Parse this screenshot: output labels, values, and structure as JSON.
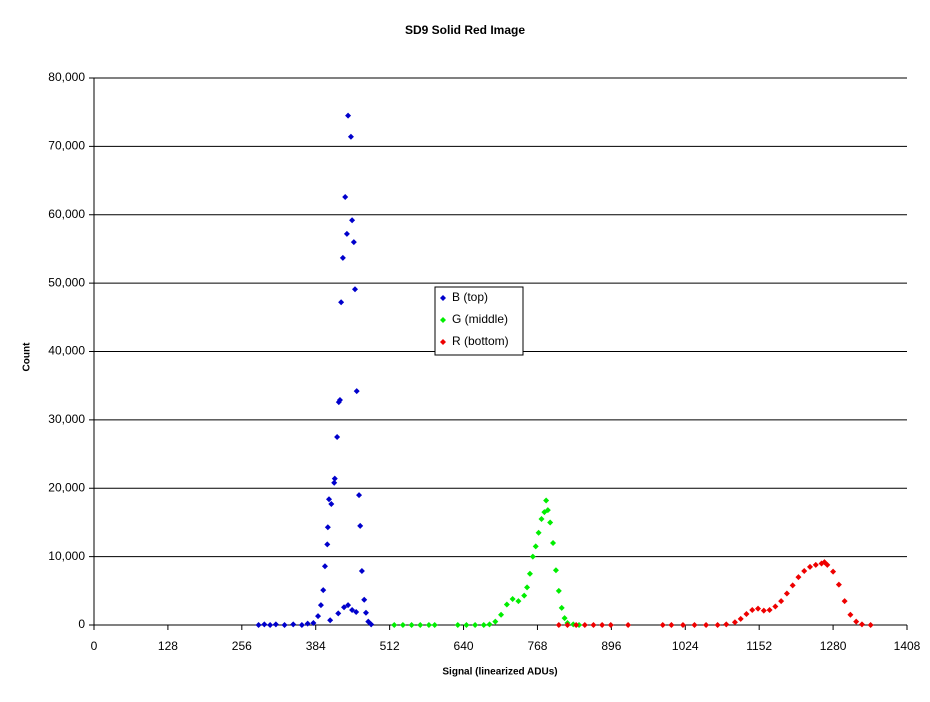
{
  "chart_data": {
    "type": "scatter",
    "title": "SD9 Solid Red Image",
    "x_label": "Signal (linearized ADUs)",
    "y_label": "Count",
    "xlim": [
      0,
      1408
    ],
    "xticks": [
      0,
      128,
      256,
      384,
      512,
      640,
      768,
      896,
      1024,
      1152,
      1280,
      1408
    ],
    "ylim": [
      0,
      80000
    ],
    "yticks": [
      0,
      {
        "value": 10000,
        "label": "10,000"
      },
      {
        "value": 20000,
        "label": "20,000"
      },
      {
        "value": 30000,
        "label": "30,000"
      },
      {
        "value": 40000,
        "label": "40,000"
      },
      {
        "value": 50000,
        "label": "50,000"
      },
      {
        "value": 60000,
        "label": "60,000"
      },
      {
        "value": 70000,
        "label": "70,000"
      },
      {
        "value": 80000,
        "label": "80,000"
      }
    ],
    "grid": true,
    "legend": "center",
    "series": [
      {
        "name": "B (top)",
        "color": "#0000cc",
        "x": [
          285,
          295,
          305,
          315,
          330,
          345,
          360,
          370,
          380,
          388,
          393,
          397,
          400,
          404,
          405,
          407,
          409,
          411,
          416,
          417,
          421,
          423,
          424,
          426,
          428,
          431,
          433,
          435,
          438,
          440,
          440,
          445,
          447,
          447,
          450,
          452,
          454,
          455,
          459,
          461,
          464,
          468,
          471,
          475,
          480
        ],
        "values": [
          0,
          100,
          0,
          100,
          0,
          100,
          0,
          200,
          300,
          1300,
          2900,
          5100,
          8600,
          11800,
          14300,
          18400,
          700,
          17700,
          20800,
          21400,
          27500,
          1700,
          32600,
          32900,
          47200,
          53700,
          2600,
          62600,
          57200,
          74500,
          2900,
          71400,
          59200,
          2200,
          56000,
          49100,
          1900,
          34200,
          19000,
          14500,
          7900,
          3700,
          1800,
          500,
          100
        ]
      },
      {
        "name": "G (middle)",
        "color": "#00ee00",
        "x": [
          520,
          535,
          550,
          565,
          580,
          590,
          630,
          645,
          660,
          675,
          685,
          695,
          705,
          715,
          725,
          735,
          745,
          750,
          755,
          760,
          765,
          770,
          775,
          780,
          783,
          786,
          790,
          795,
          800,
          805,
          810,
          815,
          820,
          830,
          840
        ],
        "values": [
          0,
          0,
          0,
          0,
          0,
          0,
          0,
          0,
          0,
          0,
          100,
          500,
          1500,
          3000,
          3800,
          3500,
          4300,
          5500,
          7500,
          10000,
          11500,
          13500,
          15500,
          16500,
          18200,
          16800,
          15000,
          12000,
          8000,
          5000,
          2500,
          1000,
          300,
          100,
          0
        ]
      },
      {
        "name": "R (bottom)",
        "color": "#ee0000",
        "x": [
          805,
          820,
          835,
          850,
          865,
          880,
          895,
          925,
          985,
          1000,
          1020,
          1040,
          1060,
          1080,
          1095,
          1110,
          1120,
          1130,
          1140,
          1150,
          1160,
          1170,
          1180,
          1190,
          1200,
          1210,
          1220,
          1230,
          1240,
          1250,
          1260,
          1265,
          1270,
          1280,
          1290,
          1300,
          1310,
          1320,
          1330,
          1345
        ],
        "values": [
          0,
          0,
          0,
          0,
          0,
          0,
          0,
          0,
          0,
          0,
          0,
          0,
          0,
          0,
          100,
          400,
          900,
          1600,
          2200,
          2400,
          2100,
          2200,
          2700,
          3500,
          4600,
          5800,
          7000,
          7900,
          8500,
          8800,
          9000,
          9200,
          8800,
          7800,
          5900,
          3500,
          1500,
          500,
          100,
          0
        ]
      }
    ]
  }
}
